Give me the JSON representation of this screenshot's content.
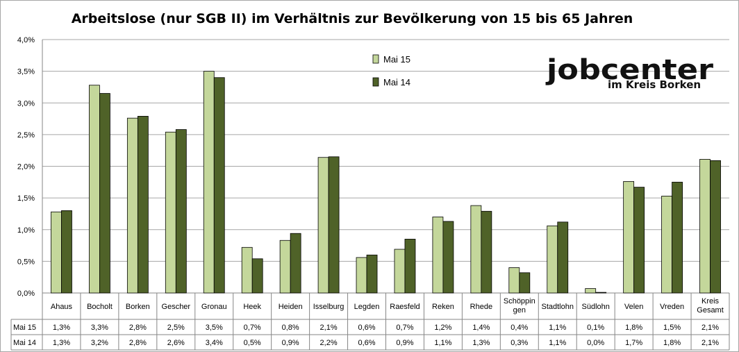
{
  "chart_data": {
    "type": "bar",
    "title": "Arbeitslose (nur SGB II) im Verhältnis zur Bevölkerung von 15 bis 65 Jahren",
    "categories": [
      "Ahaus",
      "Bocholt",
      "Borken",
      "Gescher",
      "Gronau",
      "Heek",
      "Heiden",
      "Isselburg",
      "Legden",
      "Raesfeld",
      "Reken",
      "Rhede",
      "Schöppingen",
      "Stadtlohn",
      "Südlohn",
      "Velen",
      "Vreden",
      "Kreis Gesamt"
    ],
    "category_lines": [
      [
        "Ahaus"
      ],
      [
        "Bocholt"
      ],
      [
        "Borken"
      ],
      [
        "Gescher"
      ],
      [
        "Gronau"
      ],
      [
        "Heek"
      ],
      [
        "Heiden"
      ],
      [
        "Isselburg"
      ],
      [
        "Legden"
      ],
      [
        "Raesfeld"
      ],
      [
        "Reken"
      ],
      [
        "Rhede"
      ],
      [
        "Schöppin",
        "gen"
      ],
      [
        "Stadtlohn"
      ],
      [
        "Südlohn"
      ],
      [
        "Velen"
      ],
      [
        "Vreden"
      ],
      [
        "Kreis",
        "Gesamt"
      ]
    ],
    "series": [
      {
        "name": "Mai 15",
        "color": "#c4d79b",
        "values": [
          1.28,
          3.28,
          2.76,
          2.54,
          3.5,
          0.72,
          0.83,
          2.14,
          0.56,
          0.69,
          1.2,
          1.38,
          0.4,
          1.06,
          0.07,
          1.76,
          1.53,
          2.11
        ],
        "labels": [
          "1,3%",
          "3,3%",
          "2,8%",
          "2,5%",
          "3,5%",
          "0,7%",
          "0,8%",
          "2,1%",
          "0,6%",
          "0,7%",
          "1,2%",
          "1,4%",
          "0,4%",
          "1,1%",
          "0,1%",
          "1,8%",
          "1,5%",
          "2,1%"
        ]
      },
      {
        "name": "Mai 14",
        "color": "#4f6228",
        "values": [
          1.3,
          3.15,
          2.79,
          2.58,
          3.4,
          0.54,
          0.94,
          2.15,
          0.6,
          0.85,
          1.13,
          1.29,
          0.32,
          1.12,
          0.01,
          1.67,
          1.75,
          2.09
        ],
        "labels": [
          "1,3%",
          "3,2%",
          "2,8%",
          "2,6%",
          "3,4%",
          "0,5%",
          "0,9%",
          "2,2%",
          "0,6%",
          "0,9%",
          "1,1%",
          "1,3%",
          "0,3%",
          "1,1%",
          "0,0%",
          "1,7%",
          "1,8%",
          "2,1%"
        ]
      }
    ],
    "ylim": [
      0,
      4.0
    ],
    "yticks": [
      "0,0%",
      "0,5%",
      "1,0%",
      "1,5%",
      "2,0%",
      "2,5%",
      "3,0%",
      "3,5%",
      "4,0%"
    ],
    "grid": true,
    "legend_position": "top-center",
    "data_table": true
  },
  "logo": {
    "main": "jobcenter",
    "sub": "im Kreis Borken"
  }
}
